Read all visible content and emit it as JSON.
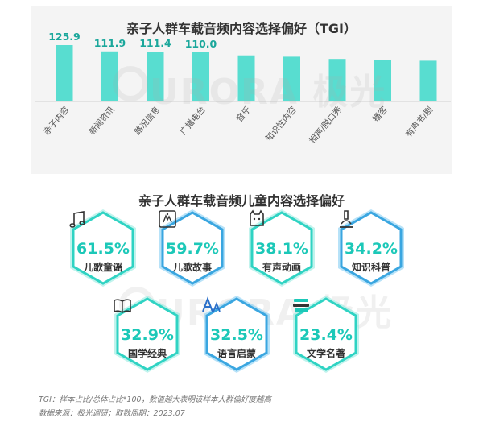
{
  "chart_data": [
    {
      "type": "bar",
      "title": "亲子人群车载音频内容选择偏好（TGI）",
      "categories": [
        "亲子内容",
        "新闻资讯",
        "路况信息",
        "广播电台",
        "音乐",
        "知识性内容",
        "相声/脱口秀",
        "播客",
        "有声书/剧"
      ],
      "values": [
        125.9,
        111.9,
        111.4,
        110.0,
        103,
        100,
        95,
        93,
        91
      ],
      "value_labels": [
        "125.9",
        "111.9",
        "111.4",
        "110.0",
        "",
        "",
        "",
        "",
        ""
      ],
      "bar_color": "#58ddd0"
    }
  ],
  "section2": {
    "title": "亲子人群车载音频儿童内容选择偏好",
    "items": [
      {
        "value": "61.5%",
        "label": "儿歌童谣",
        "icon": "music-note-icon"
      },
      {
        "value": "59.7%",
        "label": "儿歌故事",
        "icon": "storybook-icon"
      },
      {
        "value": "38.1%",
        "label": "有声动画",
        "icon": "cat-icon"
      },
      {
        "value": "34.2%",
        "label": "知识科普",
        "icon": "microscope-icon"
      },
      {
        "value": "32.9%",
        "label": "国学经典",
        "icon": "open-book-icon"
      },
      {
        "value": "32.5%",
        "label": "语言启蒙",
        "icon": "letters-icon"
      },
      {
        "value": "23.4%",
        "label": "文学名著",
        "icon": "book-stack-icon"
      }
    ]
  },
  "watermark": {
    "text": "URORA",
    "text2": "极光"
  },
  "footnotes": {
    "line1": "TGI：样本占比/总体占比*100，数值越大表明该样本人群偏好度越高",
    "line2": "数据来源：极光调研；取数周期：2023.07"
  },
  "colors": {
    "teal": "#1cc8b8",
    "teal_light": "#7fe7dc",
    "blue": "#5ab4e8"
  }
}
